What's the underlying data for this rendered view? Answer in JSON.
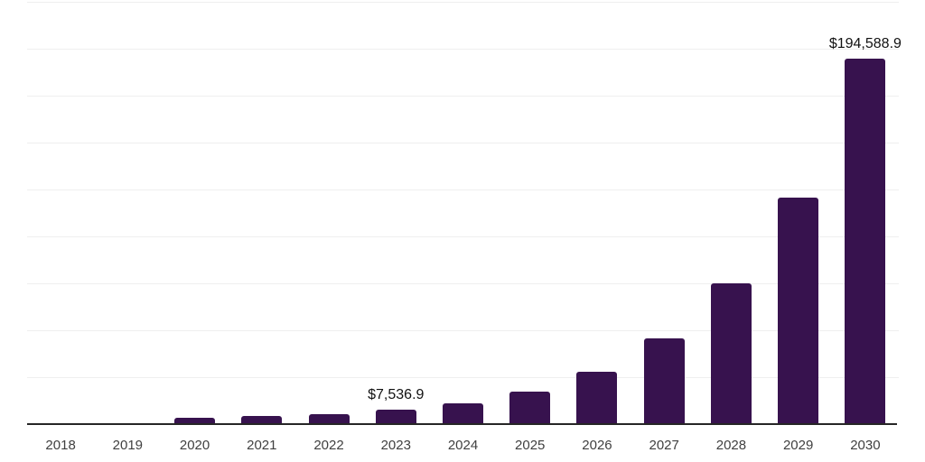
{
  "chart_data": {
    "type": "bar",
    "title": "",
    "xlabel": "",
    "ylabel": "",
    "categories": [
      "2018",
      "2019",
      "2020",
      "2021",
      "2022",
      "2023",
      "2024",
      "2025",
      "2026",
      "2027",
      "2028",
      "2029",
      "2030"
    ],
    "values": [
      100,
      250,
      3400,
      4100,
      5300,
      7536.9,
      10900,
      17300,
      28000,
      45700,
      75000,
      120600,
      194588.9
    ],
    "value_labels": [
      "",
      "",
      "",
      "",
      "",
      "$7,536.9",
      "",
      "",
      "",
      "",
      "",
      "",
      "$194,588.9"
    ],
    "ylim": [
      0,
      225000
    ],
    "gridline_step": 25000,
    "grid": "horizontal-only",
    "legend": "none",
    "y_axis_labels_visible": false,
    "bar_color": "#37124E",
    "axis_line_color": "#262626",
    "gridline_color": "#efefef",
    "tick_label_color": "#404040",
    "value_label_color": "#111111",
    "background_color": "#ffffff"
  }
}
